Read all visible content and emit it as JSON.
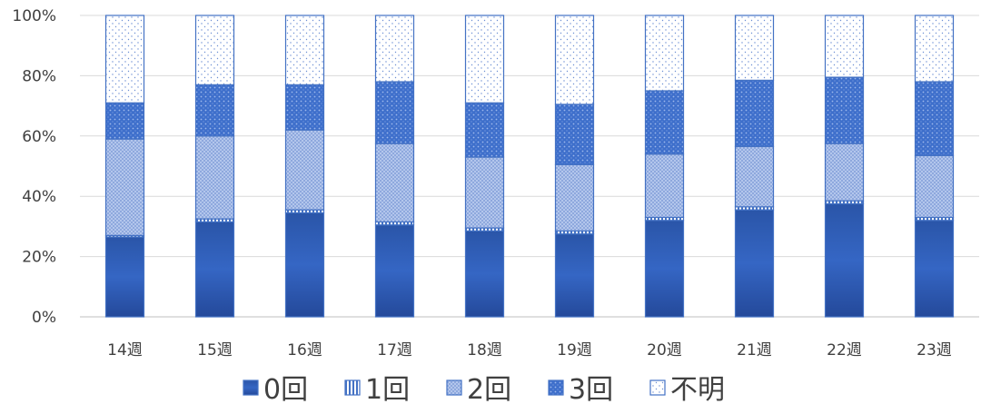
{
  "chart_data": {
    "type": "bar",
    "stacked": true,
    "categories": [
      "14週",
      "15週",
      "16週",
      "17週",
      "18週",
      "19週",
      "20週",
      "21週",
      "22週",
      "23週"
    ],
    "series": [
      {
        "name": "0回",
        "color": "#2f5db4",
        "values": [
          26.5,
          31.5,
          34.5,
          30.5,
          28.5,
          27.5,
          32.0,
          35.5,
          37.5,
          32.0
        ]
      },
      {
        "name": "1回",
        "color": "#5b86d6",
        "values": [
          0.5,
          1.0,
          1.0,
          1.0,
          1.0,
          1.0,
          1.0,
          1.0,
          1.0,
          1.0
        ]
      },
      {
        "name": "2回",
        "color": "#9fb6e6",
        "values": [
          32.0,
          27.5,
          26.5,
          26.0,
          23.5,
          22.0,
          21.0,
          20.0,
          19.0,
          20.5
        ]
      },
      {
        "name": "3回",
        "color": "#4f7fd0",
        "values": [
          12.0,
          17.0,
          15.0,
          20.5,
          18.0,
          20.0,
          21.0,
          22.0,
          22.0,
          24.5
        ]
      },
      {
        "name": "不明",
        "color": "#ffffff",
        "values": [
          29.0,
          23.0,
          23.0,
          22.0,
          29.0,
          29.5,
          25.0,
          21.5,
          20.5,
          22.0
        ]
      }
    ],
    "y_ticks": [
      "0%",
      "20%",
      "40%",
      "60%",
      "80%",
      "100%"
    ],
    "ylim": [
      0,
      100
    ],
    "grid": true,
    "legend_position": "bottom",
    "title": "",
    "xlabel": "",
    "ylabel": ""
  }
}
